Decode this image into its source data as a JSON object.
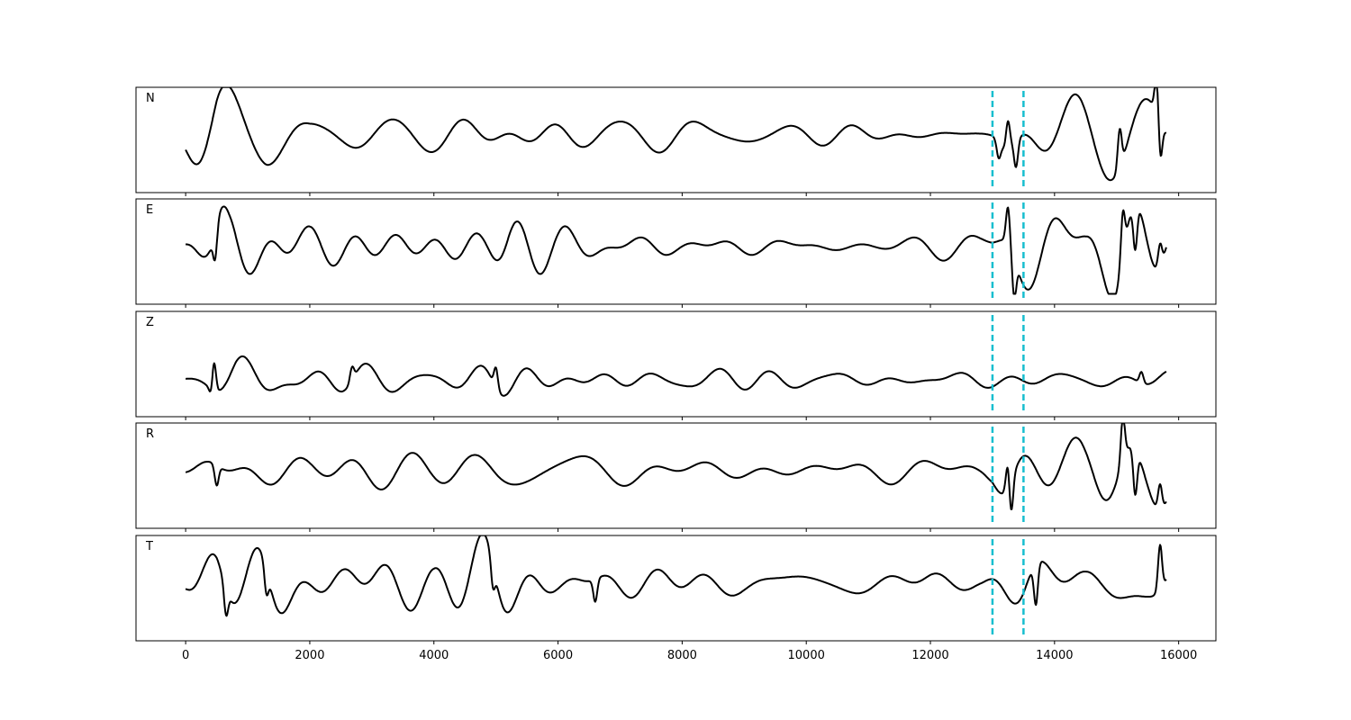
{
  "chart_data": {
    "type": "line",
    "title": "",
    "xlabel": "",
    "ylabel": "",
    "xlim": [
      -800,
      16600
    ],
    "x_ticks": [
      0,
      2000,
      4000,
      6000,
      8000,
      10000,
      12000,
      14000,
      16000
    ],
    "x_range": [
      0,
      15800
    ],
    "grid": false,
    "line_color": "#000000",
    "marker_color": "#17becf",
    "vertical_markers": [
      13000,
      13500
    ],
    "panels": [
      {
        "label": "N",
        "baseline": 0.05,
        "amplitude": 0.1,
        "envelope": [
          [
            0,
            0.2
          ],
          [
            500,
            0.7
          ],
          [
            1300,
            0.6
          ],
          [
            2000,
            0.3
          ],
          [
            4000,
            0.3
          ],
          [
            6000,
            0.35
          ],
          [
            8600,
            0.35
          ],
          [
            10000,
            0.25
          ],
          [
            12800,
            0.12
          ],
          [
            13000,
            0.2
          ],
          [
            13200,
            1.0
          ],
          [
            14000,
            0.85
          ],
          [
            15000,
            0.9
          ],
          [
            15600,
            1.0
          ],
          [
            15800,
            0.5
          ]
        ],
        "events": [
          [
            13100,
            -0.35
          ],
          [
            13250,
            0.6
          ],
          [
            13380,
            -0.6
          ],
          [
            15050,
            0.85
          ],
          [
            15650,
            1.0
          ],
          [
            15700,
            -0.9
          ]
        ]
      },
      {
        "label": "E",
        "baseline": 0.05,
        "amplitude": 0.1,
        "envelope": [
          [
            0,
            0.1
          ],
          [
            450,
            0.5
          ],
          [
            500,
            0.8
          ],
          [
            700,
            0.6
          ],
          [
            2000,
            0.45
          ],
          [
            3000,
            0.5
          ],
          [
            4800,
            0.6
          ],
          [
            5200,
            0.85
          ],
          [
            6000,
            0.5
          ],
          [
            8000,
            0.2
          ],
          [
            11000,
            0.25
          ],
          [
            12800,
            0.25
          ],
          [
            13000,
            0.3
          ],
          [
            13300,
            0.9
          ],
          [
            14500,
            0.6
          ],
          [
            15000,
            1.0
          ],
          [
            15800,
            0.7
          ]
        ],
        "events": [
          [
            480,
            -0.6
          ],
          [
            13250,
            0.8
          ],
          [
            13350,
            -0.9
          ],
          [
            15100,
            1.0
          ],
          [
            15300,
            -1.0
          ],
          [
            15700,
            0.5
          ]
        ]
      },
      {
        "label": "Z",
        "baseline": -0.15,
        "amplitude": 0.1,
        "envelope": [
          [
            0,
            0.08
          ],
          [
            300,
            0.2
          ],
          [
            800,
            0.45
          ],
          [
            1800,
            0.4
          ],
          [
            2700,
            0.35
          ],
          [
            4000,
            0.3
          ],
          [
            5000,
            0.5
          ],
          [
            6000,
            0.35
          ],
          [
            8000,
            0.25
          ],
          [
            10000,
            0.18
          ],
          [
            13000,
            0.15
          ],
          [
            14000,
            0.15
          ],
          [
            15800,
            0.2
          ]
        ],
        "events": [
          [
            450,
            1.0
          ],
          [
            430,
            -0.55
          ],
          [
            2680,
            0.3
          ],
          [
            5000,
            0.45
          ],
          [
            15400,
            0.25
          ]
        ]
      },
      {
        "label": "R",
        "baseline": 0.05,
        "amplitude": 0.1,
        "envelope": [
          [
            0,
            0.1
          ],
          [
            500,
            0.45
          ],
          [
            1100,
            0.5
          ],
          [
            2000,
            0.35
          ],
          [
            4000,
            0.35
          ],
          [
            5000,
            0.55
          ],
          [
            6000,
            0.45
          ],
          [
            8000,
            0.2
          ],
          [
            10500,
            0.18
          ],
          [
            12800,
            0.2
          ],
          [
            13000,
            0.3
          ],
          [
            13300,
            0.85
          ],
          [
            14500,
            0.7
          ],
          [
            15100,
            1.0
          ],
          [
            15800,
            0.8
          ]
        ],
        "events": [
          [
            500,
            -0.45
          ],
          [
            13250,
            0.65
          ],
          [
            13300,
            -0.8
          ],
          [
            15100,
            1.0
          ],
          [
            15300,
            -1.0
          ],
          [
            15700,
            0.55
          ]
        ]
      },
      {
        "label": "T",
        "baseline": 0.05,
        "amplitude": 0.1,
        "envelope": [
          [
            0,
            0.15
          ],
          [
            500,
            0.6
          ],
          [
            1300,
            0.7
          ],
          [
            2000,
            0.4
          ],
          [
            4000,
            0.35
          ],
          [
            5000,
            0.75
          ],
          [
            6000,
            0.5
          ],
          [
            7000,
            0.45
          ],
          [
            9000,
            0.3
          ],
          [
            12000,
            0.3
          ],
          [
            12800,
            0.15
          ],
          [
            13000,
            0.35
          ],
          [
            13500,
            0.9
          ],
          [
            14500,
            0.6
          ],
          [
            15500,
            0.75
          ],
          [
            15800,
            0.9
          ]
        ],
        "events": [
          [
            650,
            -0.6
          ],
          [
            1300,
            -0.55
          ],
          [
            4950,
            -0.55
          ],
          [
            6600,
            -0.5
          ],
          [
            13700,
            -0.9
          ],
          [
            15700,
            1.0
          ]
        ]
      }
    ]
  }
}
